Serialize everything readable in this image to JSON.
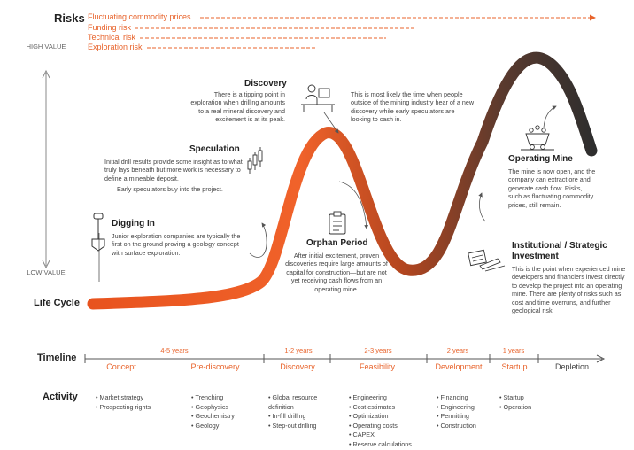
{
  "risks": {
    "title": "Risks",
    "items": [
      {
        "label": "Fluctuating commodity prices"
      },
      {
        "label": "Funding risk"
      },
      {
        "label": "Technical risk"
      },
      {
        "label": "Exploration risk"
      }
    ]
  },
  "axis": {
    "high": "HIGH VALUE",
    "low": "LOW VALUE",
    "lifecycle": "Life Cycle"
  },
  "stages": {
    "digging": {
      "title": "Digging In",
      "desc": "Junior exploration companies are typically the first on the ground proving a geology concept with surface exploration.",
      "icon": "shovel-icon"
    },
    "speculation": {
      "title": "Speculation",
      "desc": "Initial drill results provide some insight as to what truly lays beneath but more work is necessary to define a mineable deposit.",
      "desc2": "Early speculators buy into the project.",
      "icon": "candlestick-chart-icon"
    },
    "discovery": {
      "title": "Discovery",
      "desc": "There is a tipping point in exploration when drilling amounts to a real mineral discovery and excitement is at its peak.",
      "desc_right": "This is most likely the time when people outside of the mining industry hear of a new discovery while early speculators are looking to cash in.",
      "icon": "desk-worker-icon"
    },
    "orphan": {
      "title": "Orphan Period",
      "desc": "After initial excitement, proven discoveries require large amounts of capital for construction—but are not yet receiving cash flows from an operating mine.",
      "icon": "clipboard-icon"
    },
    "operating": {
      "title": "Operating Mine",
      "desc": "The mine is now open, and the company can extract ore and generate cash flow. Risks, such as fluctuating commodity prices, still remain.",
      "icon": "mine-cart-icon"
    },
    "institutional": {
      "title": "Institutional / Strategic Investment",
      "desc": "This is the point when experienced mine developers and financiers invest directly to develop the project into an operating mine. There are plenty of risks such as cost and time overruns, and further geological risk.",
      "icon": "contract-signing-icon"
    }
  },
  "timeline": {
    "title": "Timeline",
    "phases": [
      {
        "years": "4-5 years",
        "a": "Concept",
        "b": "Pre-discovery"
      },
      {
        "years": "1-2 years",
        "a": "Discovery"
      },
      {
        "years": "2-3 years",
        "a": "Feasibility"
      },
      {
        "years": "2 years",
        "a": "Development"
      },
      {
        "years": "1 years",
        "a": "Startup"
      },
      {
        "a": "Depletion"
      }
    ]
  },
  "activity": {
    "title": "Activity",
    "columns": [
      [
        "Market strategy",
        "Prospecting rights"
      ],
      [
        "Trenching",
        "Geophysics",
        "Geochemistry",
        "Geology"
      ],
      [
        "Global resource definition",
        "In-fill drilling",
        "Step-out drilling"
      ],
      [
        "Engineering",
        "Cost estimates",
        "Optimization",
        "Operating costs",
        "CAPEX",
        "Reserve calculations"
      ],
      [
        "Financing",
        "Engineering",
        "Permitting",
        "Construction"
      ],
      [
        "Startup",
        "Operation"
      ]
    ]
  },
  "colors": {
    "accent": "#e8632b",
    "curve_end": "#2e2e2e",
    "line": "#555555"
  }
}
